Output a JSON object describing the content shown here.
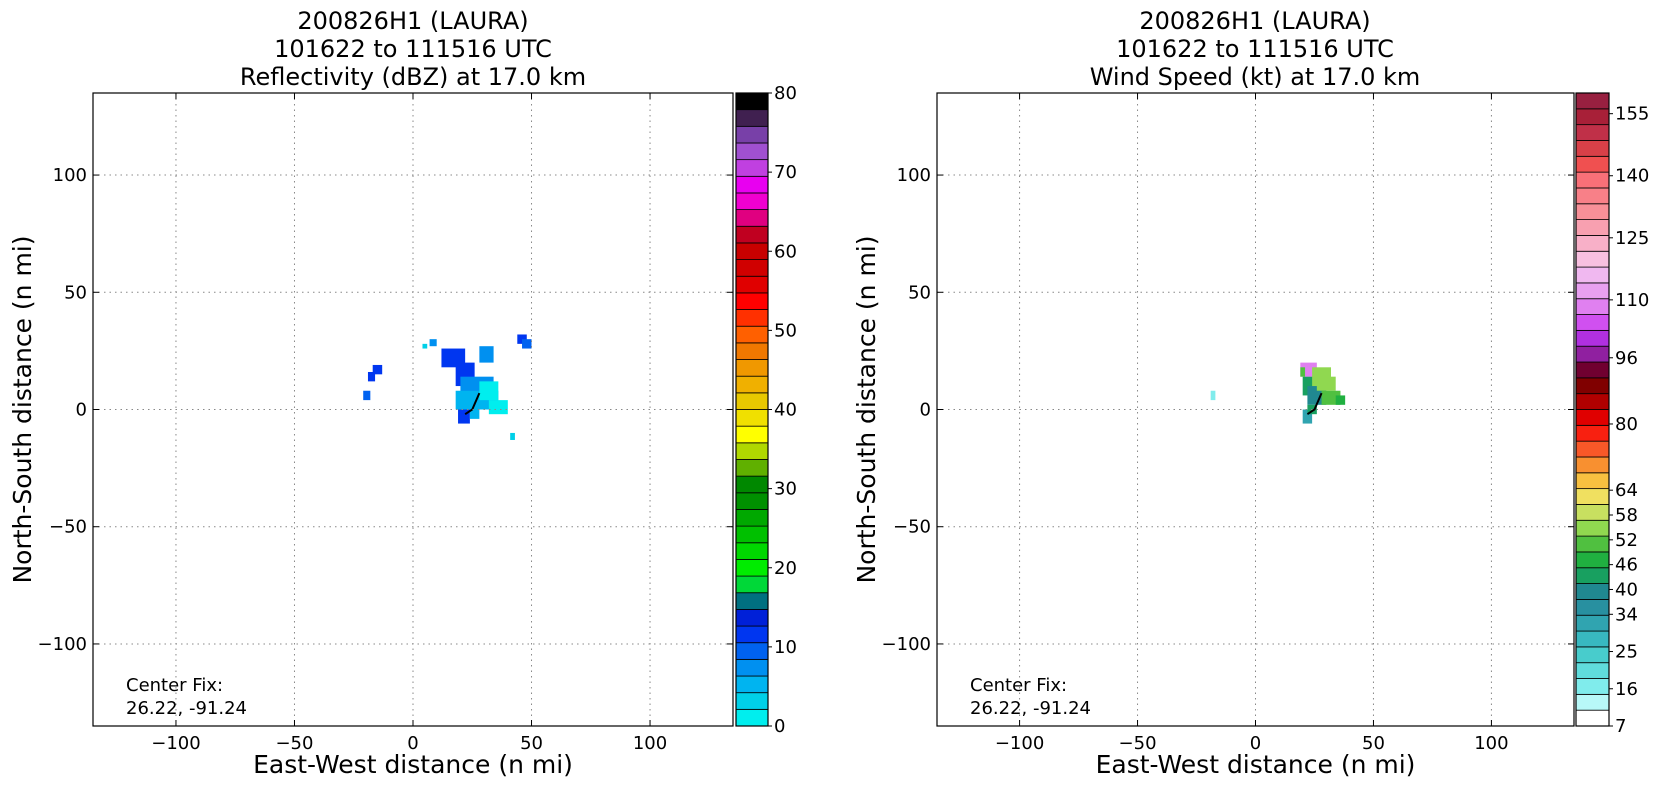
{
  "chart_data": [
    {
      "type": "heatmap",
      "title": [
        "200826H1 (LAURA)",
        "101622 to 111516 UTC",
        "Reflectivity (dBZ) at 17.0 km"
      ],
      "xlabel": "East-West distance (n mi)",
      "ylabel": "North-South distance (n mi)",
      "xlim": [
        -135,
        135
      ],
      "ylim": [
        -135,
        135
      ],
      "xticks": [
        -100,
        -50,
        0,
        50,
        100
      ],
      "yticks": [
        -100,
        -50,
        0,
        50,
        100
      ],
      "xtick_labels": [
        "−100",
        "−50",
        "0",
        "50",
        "100"
      ],
      "ytick_labels": [
        "−100",
        "−50",
        "0",
        "50",
        "100"
      ],
      "grid": true,
      "annotation": [
        "Center Fix:",
        "26.22, -91.24"
      ],
      "colorbar": {
        "min": 0,
        "max": 80,
        "ticks": [
          0,
          10,
          20,
          30,
          40,
          50,
          60,
          70,
          80
        ],
        "tick_labels": [
          "0",
          "10",
          "20",
          "30",
          "40",
          "50",
          "60",
          "70",
          "80"
        ],
        "colors": [
          "#00eeee",
          "#00d0e8",
          "#00b4f0",
          "#0090f0",
          "#0062f0",
          "#0036f0",
          "#0020d8",
          "#007080",
          "#00d838",
          "#00ec00",
          "#00d800",
          "#00c000",
          "#00a800",
          "#009000",
          "#008800",
          "#60b000",
          "#b0d800",
          "#ffff00",
          "#f0e000",
          "#e8c800",
          "#f0b000",
          "#f09800",
          "#f07800",
          "#ff6000",
          "#ff3000",
          "#ff0000",
          "#e00000",
          "#d00000",
          "#c80000",
          "#c00020",
          "#e00080",
          "#f000d0",
          "#e800f0",
          "#c040e0",
          "#a050d0",
          "#7840a8",
          "#402050",
          "#000000"
        ]
      },
      "features": [
        {
          "x0": 28,
          "y0": 20,
          "x1": 34,
          "y1": 27,
          "value": 7
        },
        {
          "x0": 4,
          "y0": 26,
          "x1": 6,
          "y1": 28,
          "value": 3
        },
        {
          "x0": 7,
          "y0": 27,
          "x1": 10,
          "y1": 30,
          "value": 8
        },
        {
          "x0": 12,
          "y0": 18,
          "x1": 22,
          "y1": 26,
          "value": 12
        },
        {
          "x0": 18,
          "y0": 10,
          "x1": 26,
          "y1": 20,
          "value": 11
        },
        {
          "x0": 20,
          "y0": 6,
          "x1": 34,
          "y1": 14,
          "value": 8
        },
        {
          "x0": 18,
          "y0": 0,
          "x1": 36,
          "y1": 8,
          "value": 5
        },
        {
          "x0": 28,
          "y0": 4,
          "x1": 36,
          "y1": 12,
          "value": 1
        },
        {
          "x0": 32,
          "y0": -2,
          "x1": 40,
          "y1": 4,
          "value": 2
        },
        {
          "x0": 19,
          "y0": -6,
          "x1": 24,
          "y1": 0,
          "value": 11
        },
        {
          "x0": 24,
          "y0": -4,
          "x1": 28,
          "y1": 0,
          "value": 6
        },
        {
          "x0": 44,
          "y0": 28,
          "x1": 48,
          "y1": 32,
          "value": 12
        },
        {
          "x0": 46,
          "y0": 26,
          "x1": 50,
          "y1": 30,
          "value": 10
        },
        {
          "x0": -17,
          "y0": 15,
          "x1": -13,
          "y1": 19,
          "value": 12
        },
        {
          "x0": -19,
          "y0": 12,
          "x1": -16,
          "y1": 16,
          "value": 11
        },
        {
          "x0": -21,
          "y0": 4,
          "x1": -18,
          "y1": 8,
          "value": 10
        },
        {
          "x0": 41,
          "y0": -13,
          "x1": 43,
          "y1": -10,
          "value": 4
        }
      ],
      "track": [
        [
          22,
          -2
        ],
        [
          25,
          0
        ],
        [
          28,
          7
        ]
      ]
    },
    {
      "type": "heatmap",
      "title": [
        "200826H1 (LAURA)",
        "101622 to 111516 UTC",
        "Wind Speed (kt) at 17.0 km"
      ],
      "xlabel": "East-West distance (n mi)",
      "ylabel": "North-South distance (n mi)",
      "xlim": [
        -135,
        135
      ],
      "ylim": [
        -135,
        135
      ],
      "xticks": [
        -100,
        -50,
        0,
        50,
        100
      ],
      "yticks": [
        -100,
        -50,
        0,
        50,
        100
      ],
      "xtick_labels": [
        "−100",
        "−50",
        "0",
        "50",
        "100"
      ],
      "ytick_labels": [
        "−100",
        "−50",
        "0",
        "50",
        "100"
      ],
      "grid": true,
      "annotation": [
        "Center Fix:",
        "26.22, -91.24"
      ],
      "colorbar": {
        "min": 7,
        "max": 160,
        "ticks": [
          7,
          16,
          25,
          34,
          40,
          46,
          52,
          58,
          64,
          80,
          96,
          110,
          125,
          140,
          155
        ],
        "tick_labels": [
          "7",
          "16",
          "25",
          "34",
          "40",
          "46",
          "52",
          "58",
          "64",
          "80",
          "96",
          "110",
          "125",
          "140",
          "155"
        ],
        "colors": [
          "#ffffff",
          "#b8f8f8",
          "#80ecec",
          "#60dcdc",
          "#48cccc",
          "#38b8c0",
          "#30a4b0",
          "#2890a0",
          "#208890",
          "#18a060",
          "#20b040",
          "#50c040",
          "#90d850",
          "#c8e060",
          "#f0e060",
          "#f8c040",
          "#f89030",
          "#f85828",
          "#f82010",
          "#e00000",
          "#b00000",
          "#800000",
          "#700030",
          "#9020a0",
          "#b030e0",
          "#d050f0",
          "#e080f0",
          "#e8a0f0",
          "#f0b8f0",
          "#f8c0e0",
          "#f8b0c8",
          "#f8a0b0",
          "#f89098",
          "#f88088",
          "#f87078",
          "#f05050",
          "#d84048",
          "#c03048",
          "#a82038",
          "#982040"
        ]
      },
      "features": [
        {
          "x0": 19,
          "y0": 14,
          "x1": 26,
          "y1": 20,
          "value": 110
        },
        {
          "x0": 20,
          "y0": 6,
          "x1": 26,
          "y1": 14,
          "value": 44
        },
        {
          "x0": 22,
          "y0": 2,
          "x1": 30,
          "y1": 10,
          "value": 40
        },
        {
          "x0": 24,
          "y0": 10,
          "x1": 32,
          "y1": 18,
          "value": 56
        },
        {
          "x0": 26,
          "y0": 8,
          "x1": 34,
          "y1": 14,
          "value": 54
        },
        {
          "x0": 28,
          "y0": 2,
          "x1": 36,
          "y1": 8,
          "value": 52
        },
        {
          "x0": 34,
          "y0": 2,
          "x1": 38,
          "y1": 6,
          "value": 47
        },
        {
          "x0": 19,
          "y0": 14,
          "x1": 21,
          "y1": 18,
          "value": 50
        },
        {
          "x0": 20,
          "y0": -6,
          "x1": 24,
          "y1": 0,
          "value": 33
        },
        {
          "x0": 22,
          "y0": -2,
          "x1": 26,
          "y1": 2,
          "value": 42
        },
        {
          "x0": -19,
          "y0": 4,
          "x1": -17,
          "y1": 8,
          "value": 16
        }
      ],
      "track": [
        [
          22,
          -2
        ],
        [
          25,
          0
        ],
        [
          28,
          7
        ]
      ]
    }
  ]
}
